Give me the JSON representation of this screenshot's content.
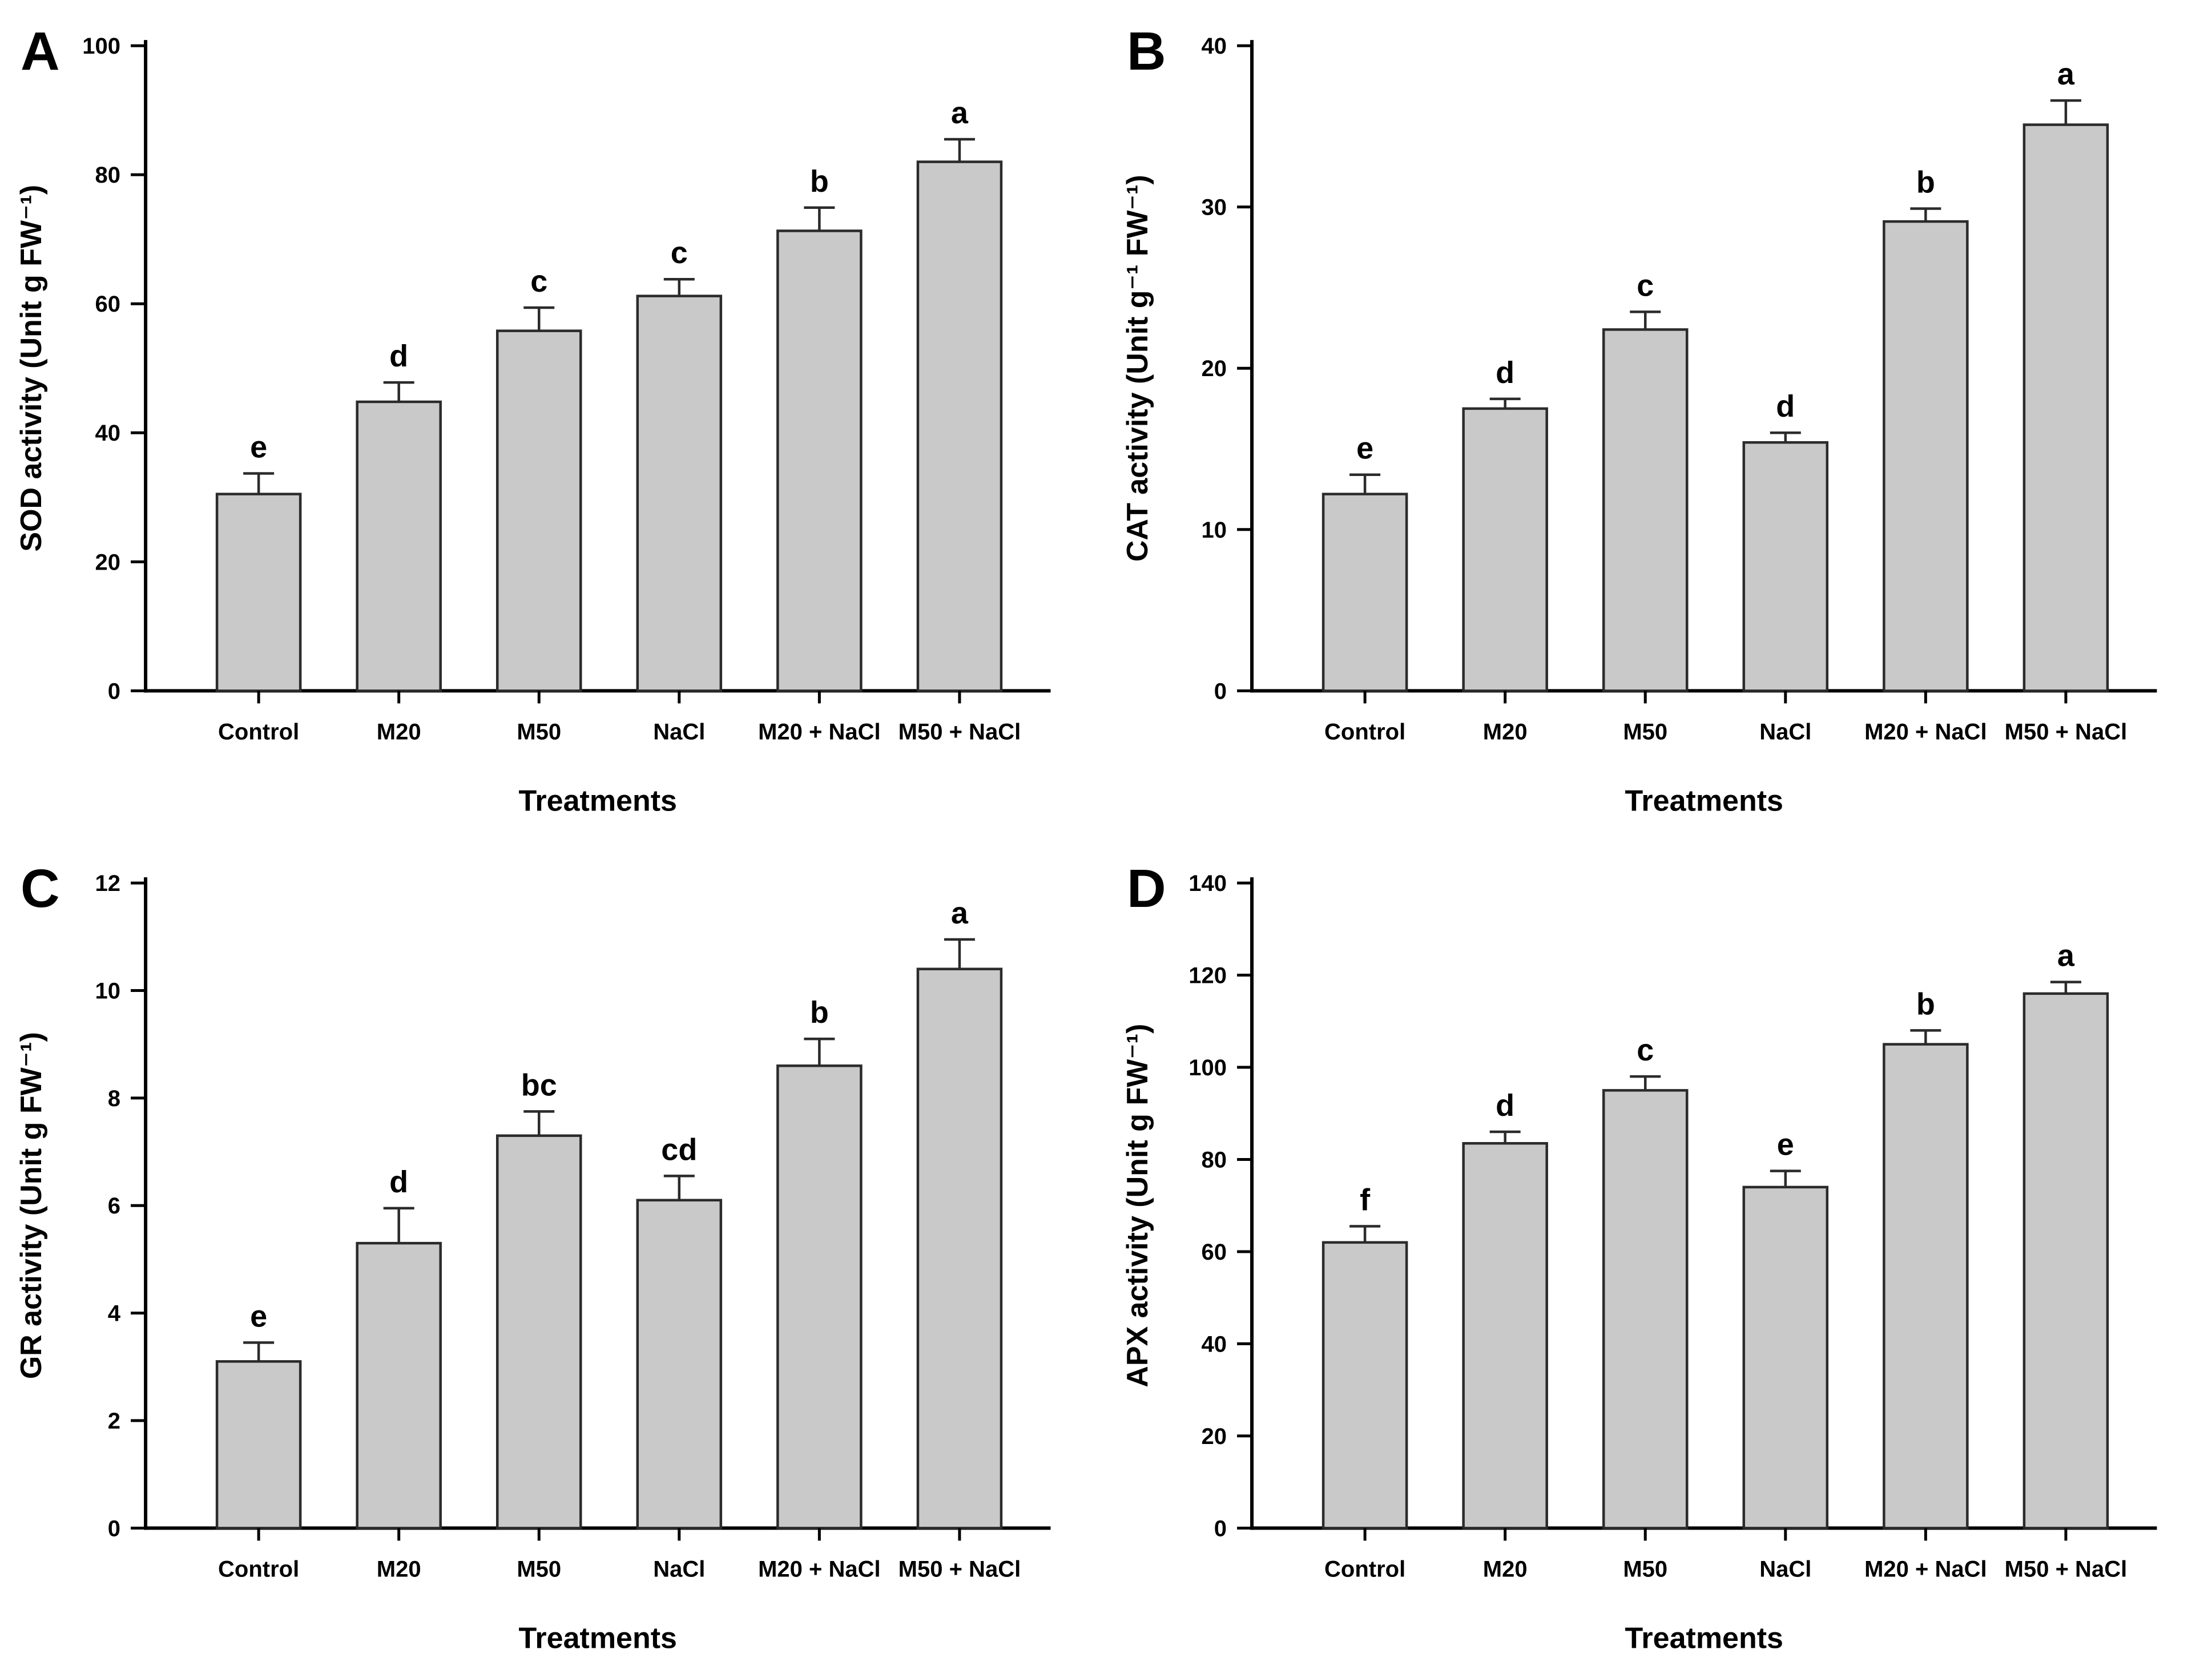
{
  "figure": {
    "background": "#ffffff",
    "panel_letters": [
      "A",
      "B",
      "C",
      "D"
    ]
  },
  "style": {
    "bar_fill": "#c9c9c9",
    "bar_stroke": "#2b2b2b",
    "axis_color": "#000000",
    "error_bar_color": "#2b2b2b",
    "text_color": "#000000"
  },
  "chart_data": [
    {
      "type": "bar",
      "panel_letter": "A",
      "title": "",
      "ylabel": "SOD activity (Unit g FW⁻¹)",
      "xlabel": "Treatments",
      "categories": [
        "Control",
        "M20",
        "M50",
        "NaCl",
        "M20 + NaCl",
        "M50 + NaCl"
      ],
      "values": [
        30.5,
        44.8,
        55.8,
        61.2,
        71.3,
        82.0
      ],
      "errors": [
        3.2,
        3.0,
        3.6,
        2.6,
        3.6,
        3.5
      ],
      "sig_letters": [
        "e",
        "d",
        "c",
        "c",
        "b",
        "a"
      ],
      "ylim": [
        0,
        100
      ],
      "yticks": [
        0,
        20,
        40,
        60,
        80,
        100
      ],
      "grid": false,
      "legend": "none"
    },
    {
      "type": "bar",
      "panel_letter": "B",
      "title": "",
      "ylabel": "CAT activity (Unit g⁻¹ FW⁻¹)",
      "xlabel": "Treatments",
      "categories": [
        "Control",
        "M20",
        "M50",
        "NaCl",
        "M20 + NaCl",
        "M50 + NaCl"
      ],
      "values": [
        12.2,
        17.5,
        22.4,
        15.4,
        29.1,
        35.1
      ],
      "errors": [
        1.2,
        0.6,
        1.1,
        0.6,
        0.8,
        1.5
      ],
      "sig_letters": [
        "e",
        "d",
        "c",
        "d",
        "b",
        "a"
      ],
      "ylim": [
        0,
        40
      ],
      "yticks": [
        0,
        10,
        20,
        30,
        40
      ],
      "grid": false,
      "legend": "none"
    },
    {
      "type": "bar",
      "panel_letter": "C",
      "title": "",
      "ylabel": "GR activity (Unit g FW⁻¹)",
      "xlabel": "Treatments",
      "categories": [
        "Control",
        "M20",
        "M50",
        "NaCl",
        "M20 + NaCl",
        "M50 + NaCl"
      ],
      "values": [
        3.1,
        5.3,
        7.3,
        6.1,
        8.6,
        10.4
      ],
      "errors": [
        0.35,
        0.65,
        0.45,
        0.45,
        0.5,
        0.55
      ],
      "sig_letters": [
        "e",
        "d",
        "bc",
        "cd",
        "b",
        "a"
      ],
      "ylim": [
        0,
        12
      ],
      "yticks": [
        0,
        2,
        4,
        6,
        8,
        10,
        12
      ],
      "grid": false,
      "legend": "none"
    },
    {
      "type": "bar",
      "panel_letter": "D",
      "title": "",
      "ylabel": "APX activity (Unit g FW⁻¹)",
      "xlabel": "Treatments",
      "categories": [
        "Control",
        "M20",
        "M50",
        "NaCl",
        "M20 + NaCl",
        "M50 + NaCl"
      ],
      "values": [
        62.0,
        83.5,
        95.0,
        74.0,
        105.0,
        116.0
      ],
      "errors": [
        3.5,
        2.5,
        3.0,
        3.5,
        3.0,
        2.5
      ],
      "sig_letters": [
        "f",
        "d",
        "c",
        "e",
        "b",
        "a"
      ],
      "ylim": [
        0,
        140
      ],
      "yticks": [
        0,
        20,
        40,
        60,
        80,
        100,
        120,
        140
      ],
      "grid": false,
      "legend": "none"
    }
  ]
}
